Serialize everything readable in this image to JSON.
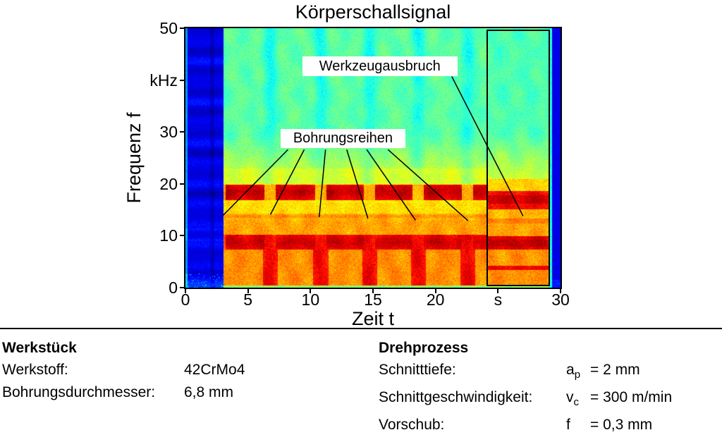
{
  "chart_data": {
    "type": "heatmap",
    "subtype": "spectrogram",
    "title": "Körperschallsignal",
    "xlabel": "Zeit t",
    "ylabel": "Frequenz f",
    "x_unit": "s",
    "y_unit": "kHz",
    "xlim": [
      0,
      30
    ],
    "ylim": [
      0,
      50
    ],
    "xtick_values": [
      0,
      5,
      10,
      15,
      20,
      25,
      30
    ],
    "xtick_labels": [
      "0",
      "5",
      "10",
      "15",
      "20",
      "s",
      "30"
    ],
    "ytick_values": [
      50,
      40,
      30,
      20,
      10,
      0
    ],
    "ytick_labels": [
      "50",
      "kHz",
      "30",
      "20",
      "10",
      "0"
    ],
    "colormap": "jet",
    "grid": false,
    "legend": "none",
    "idle_blue_intervals_s": [
      [
        0,
        3.0
      ],
      [
        29.3,
        30
      ]
    ],
    "end_transition_strip_s": [
      29.0,
      29.3
    ],
    "hole_row_segments_s": [
      [
        3.2,
        6.3
      ],
      [
        7.2,
        10.35
      ],
      [
        11.25,
        14.25
      ],
      [
        15.15,
        18.15
      ],
      [
        19.05,
        22.1
      ],
      [
        23.0,
        24.17
      ]
    ],
    "pause_times_s": [
      6.75,
      10.8,
      14.7,
      18.6,
      22.55
    ],
    "breakage_window_s": [
      24.17,
      29.0
    ],
    "breakage_box": {
      "t": [
        24.17,
        29.05
      ],
      "f": [
        0.6,
        49.4
      ]
    },
    "frequency_bands_khz": [
      {
        "range": [
          16.5,
          20.0
        ],
        "character": "strong red segments during each hole row"
      },
      {
        "range": [
          7.4,
          10.3
        ],
        "character": "strong red band along whole process"
      },
      {
        "range": [
          0.5,
          7.4
        ],
        "character": "orange, with red columns down to 0 kHz during pauses"
      },
      {
        "range": [
          13.5,
          14.0
        ],
        "character": "faint darker orange line"
      },
      {
        "range": [
          3.5,
          4.2
        ],
        "character": "dark red line visible only inside breakage window"
      },
      {
        "range": [
          30,
          50
        ],
        "character": "green background with teal stripes at pauses"
      }
    ],
    "annotations": [
      {
        "text": "Werkzeugausbruch",
        "box": {
          "t": [
            9.35,
            21.75
          ],
          "f": [
            40.7,
            44.5
          ]
        },
        "pointers": [
          [
            21.3,
            40.7,
            27.0,
            13.8
          ]
        ]
      },
      {
        "text": "Bohrungsreihen",
        "box": {
          "t": [
            7.6,
            17.6
          ],
          "f": [
            26.9,
            30.6
          ]
        },
        "pointers": [
          [
            8.2,
            26.6,
            3.0,
            13.9
          ],
          [
            9.5,
            26.6,
            6.8,
            14.1
          ],
          [
            11.2,
            26.6,
            10.7,
            13.6
          ],
          [
            12.9,
            26.6,
            14.6,
            13.3
          ],
          [
            14.5,
            26.6,
            18.4,
            13.0
          ],
          [
            16.2,
            26.6,
            22.6,
            12.9
          ]
        ]
      }
    ]
  },
  "panel": {
    "left": {
      "heading": "Werkstück",
      "rows": [
        {
          "label": "Werkstoff:",
          "value": "42CrMo4"
        },
        {
          "label": "Bohrungsdurchmesser:",
          "value": "6,8 mm"
        }
      ]
    },
    "right": {
      "heading": "Drehprozess",
      "rows": [
        {
          "label": "Schnitttiefe:",
          "sym": "a",
          "sub": "p",
          "eq": "= 2 mm"
        },
        {
          "label": "Schnittgeschwindigkeit:",
          "sym": "v",
          "sub": "c",
          "eq": "= 300 m/min"
        },
        {
          "label": "Vorschub:",
          "sym": "f",
          "sub": "",
          "eq": "= 0,3 mm"
        }
      ]
    }
  }
}
